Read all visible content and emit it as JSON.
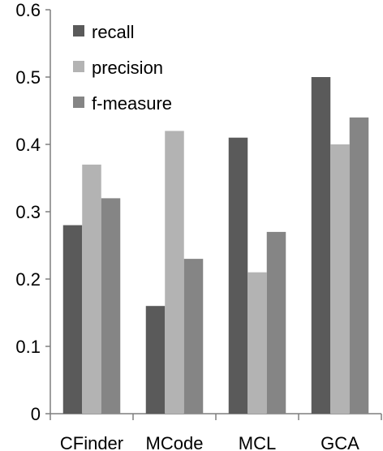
{
  "chart_data": {
    "type": "bar",
    "title": "",
    "xlabel": "",
    "ylabel": "",
    "categories": [
      "CFinder",
      "MCode",
      "MCL",
      "GCA"
    ],
    "series": [
      {
        "name": "recall",
        "values": [
          0.28,
          0.16,
          0.41,
          0.5
        ],
        "color": "#5a5a5a"
      },
      {
        "name": "precision",
        "values": [
          0.37,
          0.42,
          0.21,
          0.4
        ],
        "color": "#b3b3b3"
      },
      {
        "name": "f-measure",
        "values": [
          0.32,
          0.23,
          0.27,
          0.44
        ],
        "color": "#858585"
      }
    ],
    "ylim": [
      0,
      0.6
    ],
    "yticks": [
      "0",
      "0.1",
      "0.2",
      "0.3",
      "0.4",
      "0.5",
      "0.6"
    ],
    "grid": false,
    "legend": "top-left"
  }
}
